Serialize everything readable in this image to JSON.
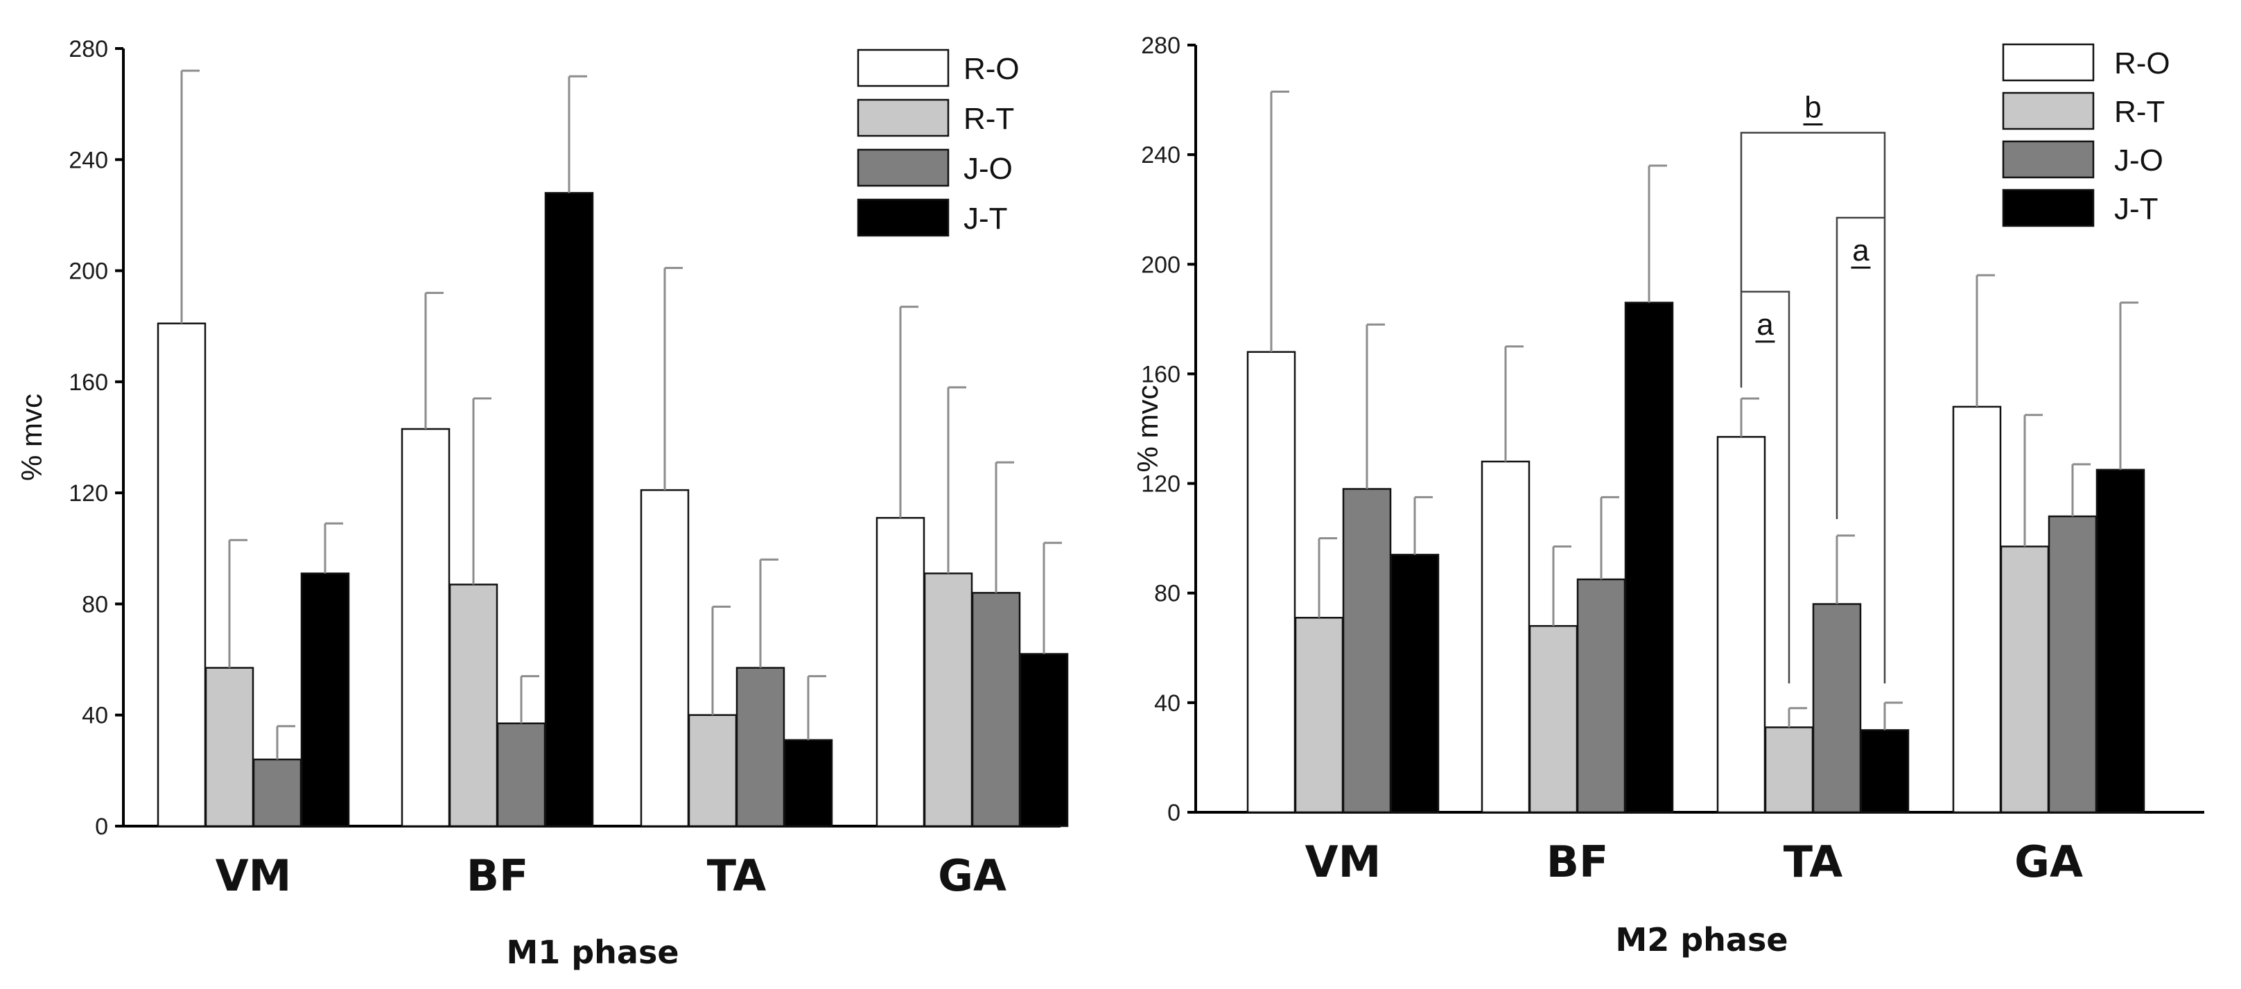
{
  "colors": {
    "R-O": "#ffffff",
    "R-T": "#c8c8c8",
    "J-O": "#7f7f7f",
    "J-T": "#000000"
  },
  "chart_data": [
    {
      "type": "bar",
      "title": "",
      "xlabel": "M1 phase",
      "ylabel": "% mvc",
      "ylim": [
        0,
        280
      ],
      "yticks": [
        0,
        40,
        80,
        120,
        160,
        200,
        240,
        280
      ],
      "categories": [
        "VM",
        "BF",
        "TA",
        "GA"
      ],
      "legend_position": "top-right",
      "series": [
        {
          "name": "R-O",
          "values": [
            181,
            143,
            121,
            111
          ],
          "errors": [
            91,
            49,
            80,
            76
          ]
        },
        {
          "name": "R-T",
          "values": [
            57,
            87,
            40,
            91
          ],
          "errors": [
            46,
            67,
            39,
            67
          ]
        },
        {
          "name": "J-O",
          "values": [
            24,
            37,
            57,
            84
          ],
          "errors": [
            12,
            17,
            39,
            47
          ]
        },
        {
          "name": "J-T",
          "values": [
            91,
            228,
            31,
            62
          ],
          "errors": [
            18,
            42,
            23,
            40
          ]
        }
      ],
      "annotations": []
    },
    {
      "type": "bar",
      "title": "",
      "xlabel": "M2 phase",
      "ylabel": "% mvc",
      "ylim": [
        0,
        280
      ],
      "yticks": [
        0,
        40,
        80,
        120,
        160,
        200,
        240,
        280
      ],
      "categories": [
        "VM",
        "BF",
        "TA",
        "GA"
      ],
      "legend_position": "top-right",
      "series": [
        {
          "name": "R-O",
          "values": [
            168,
            128,
            137,
            148
          ],
          "errors": [
            95,
            42,
            14,
            48
          ]
        },
        {
          "name": "R-T",
          "values": [
            71,
            68,
            31,
            97
          ],
          "errors": [
            29,
            29,
            7,
            48
          ]
        },
        {
          "name": "J-O",
          "values": [
            118,
            85,
            76,
            108
          ],
          "errors": [
            60,
            30,
            25,
            19
          ]
        },
        {
          "name": "J-T",
          "values": [
            94,
            186,
            30,
            125
          ],
          "errors": [
            21,
            50,
            10,
            61
          ]
        }
      ],
      "annotations": [
        {
          "label": "a",
          "category": "TA",
          "from": "R-O",
          "to": "R-T",
          "top_value": 190,
          "left_end": 155,
          "right_end": 47
        },
        {
          "label": "a",
          "category": "TA",
          "from": "J-O",
          "to": "J-T",
          "top_value": 217,
          "left_end": 107,
          "right_end": 47
        },
        {
          "label": "b",
          "category": "TA",
          "from": "R-O",
          "to": "J-T",
          "top_value": 248,
          "left_end": 190,
          "right_end": 217
        }
      ]
    }
  ]
}
